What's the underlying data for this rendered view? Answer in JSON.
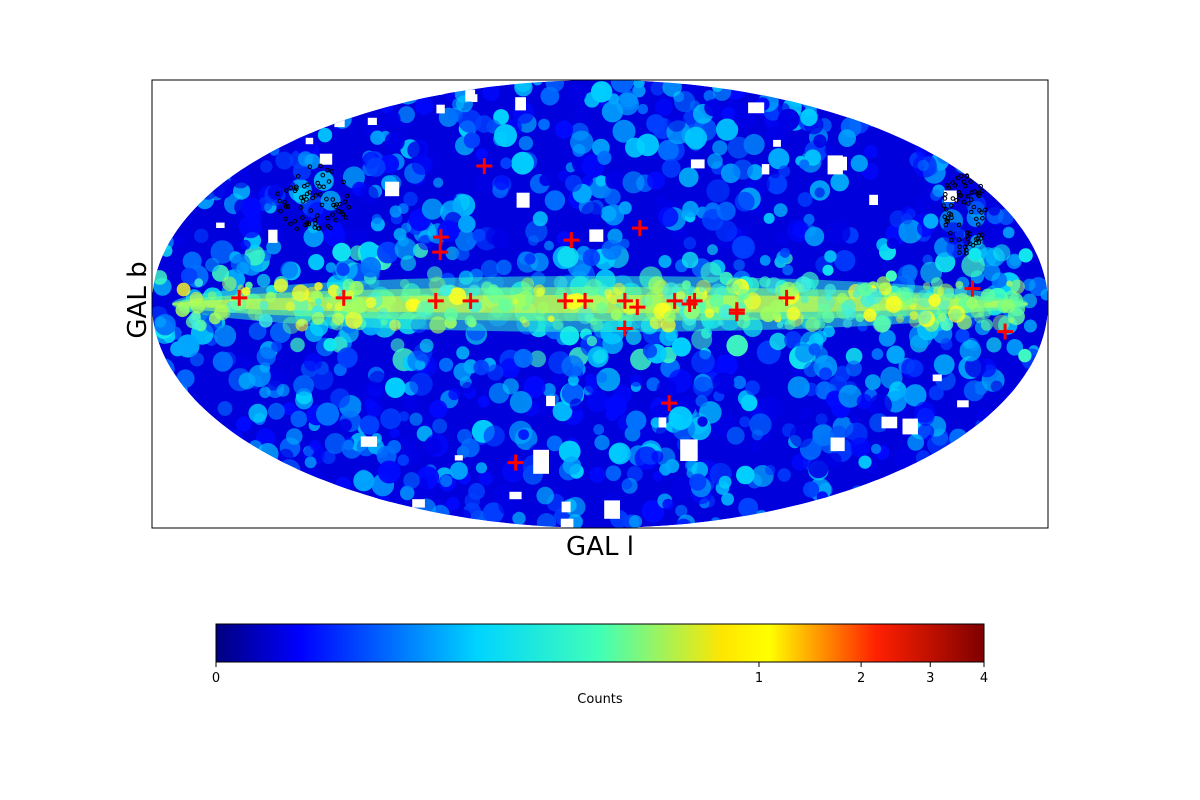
{
  "chart_data": {
    "type": "heatmap",
    "projection": "mollweide",
    "coordinate_system": "galactic",
    "xlabel": "GAL l",
    "ylabel": "GAL b",
    "colormap": "jet",
    "colorbar": {
      "label": "Counts",
      "orientation": "horizontal",
      "placement": "bottom",
      "scale": "nonlinear",
      "range": [
        0,
        4
      ],
      "ticks": [
        {
          "value": 0,
          "label": "0"
        },
        {
          "value": 1,
          "label": "1"
        },
        {
          "value": 2,
          "label": "2"
        },
        {
          "value": 3,
          "label": "3"
        },
        {
          "value": 4,
          "label": "4"
        }
      ]
    },
    "sources": {
      "marker": "+",
      "color": "#ff0000",
      "points": [
        {
          "l": 145,
          "b": 2
        },
        {
          "l": 103,
          "b": 2
        },
        {
          "l": 66,
          "b": 1
        },
        {
          "l": 52,
          "b": 1
        },
        {
          "l": 14,
          "b": 1
        },
        {
          "l": 6,
          "b": 1
        },
        {
          "l": -10,
          "b": 1
        },
        {
          "l": -15,
          "b": -1
        },
        {
          "l": -10,
          "b": -8
        },
        {
          "l": -30,
          "b": 1
        },
        {
          "l": -36,
          "b": 0
        },
        {
          "l": -38,
          "b": 1
        },
        {
          "l": -55,
          "b": -3
        },
        {
          "l": -55,
          "b": -2
        },
        {
          "l": -75,
          "b": 2
        },
        {
          "l": -150,
          "b": 5
        },
        {
          "l": -164,
          "b": -9
        },
        {
          "l": -31,
          "b": -33
        },
        {
          "l": 66,
          "b": 17
        },
        {
          "l": 67,
          "b": 22
        },
        {
          "l": 59,
          "b": 47
        },
        {
          "l": 12,
          "b": 21
        },
        {
          "l": -17,
          "b": 25
        },
        {
          "l": 48,
          "b": -55
        }
      ]
    },
    "highlight_regions": [
      {
        "name": "",
        "center_l": 130,
        "center_b": 35
      },
      {
        "name": "",
        "center_l": -160,
        "center_b": 30
      }
    ]
  }
}
